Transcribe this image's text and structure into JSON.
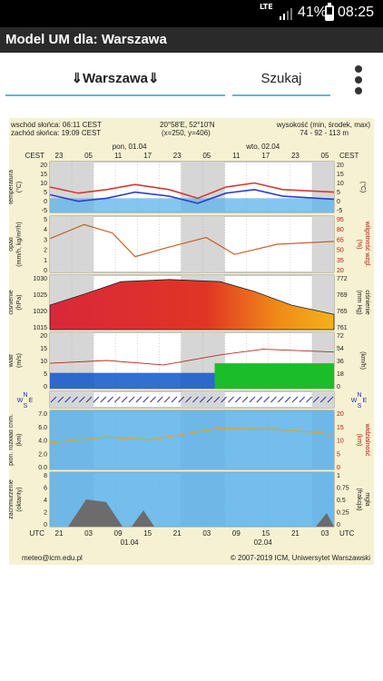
{
  "status_bar": {
    "network": "LTE",
    "battery": "41%",
    "battery_level": 0.41,
    "time": "08:25"
  },
  "app": {
    "title": "Model UM dla: Warszawa"
  },
  "tabs": [
    {
      "label": "⇓Warszawa⇓",
      "active": true
    },
    {
      "label": "Szukaj",
      "active": false
    }
  ],
  "meteogram": {
    "header": {
      "sunrise": "wschód słońca: 06:11 CEST",
      "sunset": "zachód słońca: 19:09 CEST",
      "coords": "20°58'E, 52°10'N",
      "grid": "(x=250, y=406)",
      "altitude_label": "wysokość (min, środek, max)",
      "altitude_value": "74 - 92 - 113 m"
    },
    "top_axis": {
      "zone": "CEST",
      "hours": [
        "23",
        "05",
        "11",
        "17",
        "23",
        "05",
        "11",
        "17",
        "23",
        "05"
      ],
      "days": [
        "pon, 01.04",
        "wto, 02.04"
      ]
    },
    "bottom_axis": {
      "zone": "UTC",
      "hours": [
        "21",
        "03",
        "09",
        "15",
        "21",
        "03",
        "09",
        "15",
        "21",
        "03"
      ],
      "days": [
        "01.04",
        "02.04"
      ]
    },
    "panels": [
      {
        "label_left": "temperatura\n(°C)",
        "label_right": "(°C)",
        "left_ticks": [
          "20",
          "15",
          "10",
          "5",
          "0",
          "-5"
        ],
        "right_ticks": [
          "20",
          "15",
          "10",
          "5",
          "0",
          "-5"
        ]
      },
      {
        "label_left": "opad\n(mm/h, kg/m²/h)",
        "label_right": "(%)\nwilgotność wzgl.",
        "left_ticks": [
          "5",
          "4",
          "3",
          "2",
          "1",
          "0"
        ],
        "right_ticks": [
          "95",
          "80",
          "65",
          "50",
          "35",
          "20"
        ]
      },
      {
        "label_left": "ciśnienie\n(hPa)",
        "label_right": "(mm Hg)\nciśnienie",
        "left_ticks": [
          "1030",
          "1025",
          "1020",
          "1015"
        ],
        "right_ticks": [
          "772",
          "769",
          "765",
          "761"
        ]
      },
      {
        "label_left": "wiatr\n(m/s)",
        "label_right": "(km/h)",
        "left_ticks": [
          "20",
          "15",
          "10",
          "5",
          "0"
        ],
        "right_ticks": [
          "72",
          "54",
          "36",
          "18",
          "0"
        ]
      },
      {
        "label_left": "pion. rozkład chm.\n(km)",
        "label_right": "(km)\nwidzialność",
        "left_ticks": [
          "7.0",
          "6.0",
          "4.0",
          "2.0",
          "0.0"
        ],
        "right_ticks": [
          "20",
          "15",
          "10",
          "5",
          "0"
        ]
      },
      {
        "label_left": "zachmurzenie\n(oktanty)",
        "label_right": "(frakcja)\nmgła",
        "left_ticks": [
          "8",
          "6",
          "4",
          "2",
          "0"
        ],
        "right_ticks": [
          "1",
          "0.75",
          "0.5",
          "0.25",
          "0"
        ]
      }
    ],
    "wind_compass": "W N E S",
    "footer": {
      "email": "meteo@icm.edu.pl",
      "copyright": "© 2007-2019 ICM, Uniwersytet Warszawski"
    },
    "colors": {
      "background": "#f6f1d2",
      "plot_bg": "#ffffff",
      "night_band": "#d6d6d6",
      "grid": "#9a9a9a",
      "temperature": "#d23a30",
      "dew_point": "#2b3fd1",
      "humidity": "#c8602a",
      "wind": "#0e56c8",
      "gust": "#b22c22",
      "sky": "#5bb3e9",
      "cloud": "#6c6c6c",
      "accent": "#5fb5e6"
    }
  }
}
